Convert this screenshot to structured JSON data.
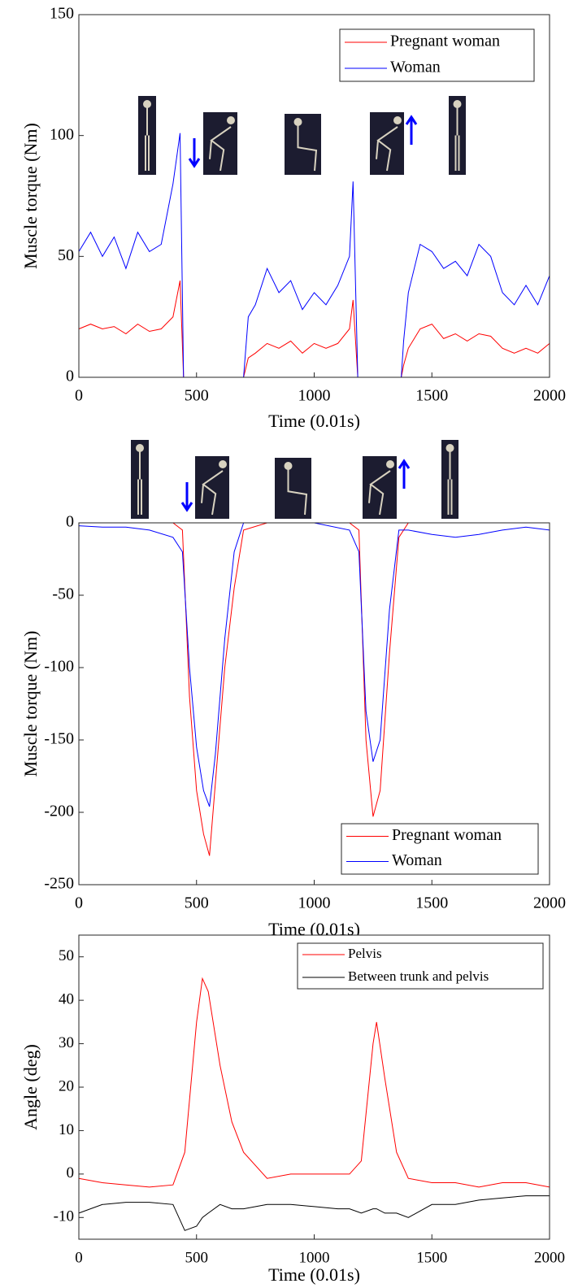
{
  "chart_data": [
    {
      "type": "line",
      "xlabel": "Time (0.01s)",
      "ylabel": "Muscle torque (Nm)",
      "x": [
        0,
        50,
        100,
        150,
        200,
        250,
        300,
        350,
        400,
        430,
        445,
        500,
        600,
        700,
        720,
        750,
        800,
        850,
        900,
        950,
        1000,
        1050,
        1100,
        1150,
        1165,
        1185,
        1200,
        1300,
        1370,
        1380,
        1400,
        1450,
        1500,
        1550,
        1600,
        1650,
        1700,
        1750,
        1800,
        1850,
        1900,
        1950,
        2000
      ],
      "series": [
        {
          "name": "Pregnant woman",
          "color": "#ff0000",
          "values": [
            20,
            22,
            20,
            21,
            18,
            22,
            19,
            20,
            25,
            40,
            0,
            0,
            0,
            0,
            8,
            10,
            14,
            12,
            15,
            10,
            14,
            12,
            14,
            20,
            32,
            0,
            0,
            0,
            0,
            5,
            12,
            20,
            22,
            16,
            18,
            15,
            18,
            17,
            12,
            10,
            12,
            10,
            14
          ]
        },
        {
          "name": "Woman",
          "color": "#0000ff",
          "values": [
            52,
            60,
            50,
            58,
            45,
            60,
            52,
            55,
            80,
            101,
            0,
            0,
            0,
            0,
            25,
            30,
            45,
            35,
            40,
            28,
            35,
            30,
            38,
            50,
            81,
            0,
            0,
            0,
            0,
            15,
            35,
            55,
            52,
            45,
            48,
            42,
            55,
            50,
            35,
            30,
            38,
            30,
            42
          ]
        }
      ],
      "xlim": [
        0,
        2000
      ],
      "xticks": [
        0,
        500,
        1000,
        1500,
        2000
      ],
      "ylim": [
        0,
        150
      ],
      "yticks": [
        0,
        50,
        100,
        150
      ],
      "legend": "upper right"
    },
    {
      "type": "line",
      "xlabel": "Time (0.01s)",
      "ylabel": "Muscle torque (Nm)",
      "x": [
        0,
        100,
        200,
        300,
        400,
        440,
        470,
        500,
        530,
        555,
        580,
        620,
        660,
        700,
        800,
        1000,
        1150,
        1190,
        1220,
        1250,
        1280,
        1320,
        1360,
        1400,
        1500,
        1600,
        1700,
        1800,
        1900,
        2000
      ],
      "series": [
        {
          "name": "Pregnant woman",
          "color": "#ff0000",
          "values": [
            0,
            0,
            0,
            0,
            0,
            -5,
            -120,
            -185,
            -215,
            -230,
            -180,
            -100,
            -45,
            -5,
            0,
            0,
            0,
            -5,
            -150,
            -203,
            -185,
            -90,
            -10,
            0,
            0,
            0,
            0,
            0,
            0,
            0
          ]
        },
        {
          "name": "Woman",
          "color": "#0000ff",
          "values": [
            -2,
            -3,
            -3,
            -5,
            -10,
            -20,
            -100,
            -155,
            -185,
            -196,
            -160,
            -80,
            -20,
            0,
            0,
            0,
            -5,
            -20,
            -130,
            -165,
            -150,
            -60,
            -5,
            -5,
            -8,
            -10,
            -8,
            -5,
            -3,
            -5
          ]
        }
      ],
      "xlim": [
        0,
        2000
      ],
      "xticks": [
        0,
        500,
        1000,
        1500,
        2000
      ],
      "ylim": [
        -250,
        0
      ],
      "yticks": [
        -250,
        -200,
        -150,
        -100,
        -50,
        0
      ],
      "legend": "lower right"
    },
    {
      "type": "line",
      "xlabel": "Time (0.01s)",
      "ylabel": "Angle (deg)",
      "x": [
        0,
        100,
        200,
        300,
        400,
        450,
        500,
        525,
        550,
        600,
        650,
        700,
        800,
        900,
        1000,
        1100,
        1150,
        1200,
        1250,
        1265,
        1300,
        1350,
        1400,
        1500,
        1600,
        1700,
        1800,
        1900,
        2000
      ],
      "series": [
        {
          "name": "Pelvis",
          "color": "#ff0000",
          "values": [
            -1,
            -2,
            -2.5,
            -3,
            -2.5,
            5,
            35,
            45,
            42,
            25,
            12,
            5,
            -1,
            0,
            0,
            0,
            0,
            3,
            30,
            35,
            22,
            5,
            -1,
            -2,
            -2,
            -3,
            -2,
            -2,
            -3
          ]
        },
        {
          "name": "Between trunk and pelvis",
          "color": "#000000",
          "values": [
            -9,
            -7,
            -6.5,
            -6.5,
            -7,
            -13,
            -12,
            -10,
            -9,
            -7,
            -8,
            -8,
            -7,
            -7,
            -7.5,
            -8,
            -8,
            -9,
            -8,
            -8,
            -9,
            -9,
            -10,
            -7,
            -7,
            -6,
            -5.5,
            -5,
            -5
          ]
        }
      ],
      "xlim": [
        0,
        2000
      ],
      "xticks": [
        0,
        500,
        1000,
        1500,
        2000
      ],
      "ylim": [
        -15,
        55
      ],
      "yticks": [
        -10,
        0,
        10,
        20,
        30,
        40,
        50
      ],
      "legend": "upper right"
    }
  ]
}
